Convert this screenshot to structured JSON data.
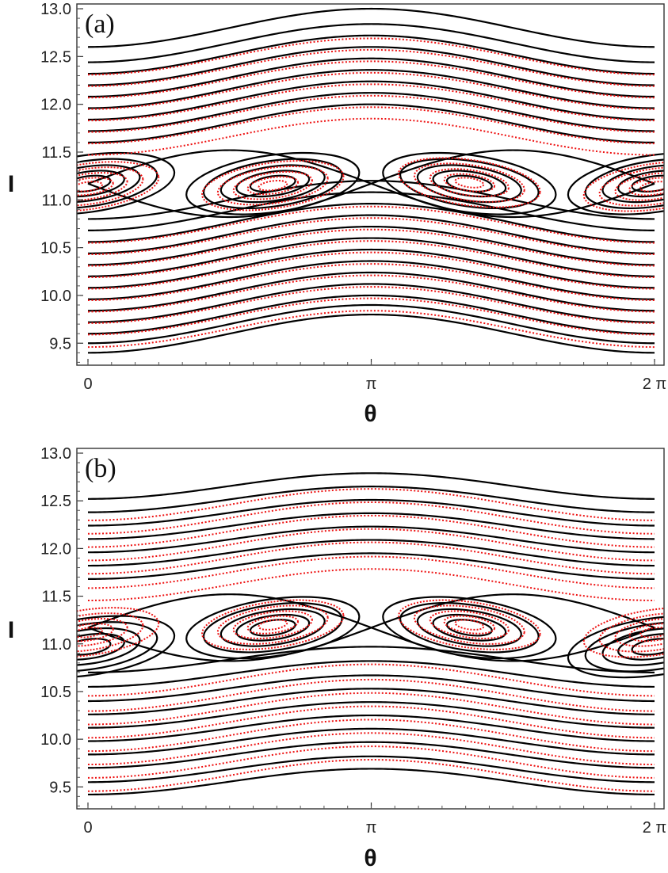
{
  "chart_data": [
    {
      "type": "scatter",
      "panel_label": "(a)",
      "xlabel": "θ",
      "ylabel": "I",
      "xlim": [
        0,
        6.2832
      ],
      "ylim": [
        9.27,
        13.05
      ],
      "x_ticks": [
        {
          "value": 0,
          "label": "0"
        },
        {
          "value": 3.1416,
          "label": "π"
        },
        {
          "value": 6.2832,
          "label": "2 π"
        }
      ],
      "y_ticks": [
        {
          "value": 9.5,
          "label": "9.5"
        },
        {
          "value": 10.0,
          "label": "10.0"
        },
        {
          "value": 10.5,
          "label": "10.5"
        },
        {
          "value": 11.0,
          "label": "11.0"
        },
        {
          "value": 11.5,
          "label": "11.5"
        },
        {
          "value": 12.0,
          "label": "12.0"
        },
        {
          "value": 12.5,
          "label": "12.5"
        },
        {
          "value": 13.0,
          "label": "13.0"
        }
      ],
      "grid": false,
      "series": [
        {
          "kind": "analytic-contours",
          "color": "#000000",
          "outer_curves_at_theta_0": [
            9.4,
            9.5,
            9.6,
            9.72,
            9.84,
            9.96,
            10.08,
            10.2,
            10.32,
            10.44,
            10.56,
            10.68,
            10.8,
            11.6,
            11.72,
            11.84,
            11.96,
            12.08,
            12.2,
            12.32,
            12.44,
            12.6
          ],
          "modulation_amplitude": 0.4,
          "separatrix_centers": [
            1.571,
            4.712
          ],
          "separatrix_level_range": [
            10.82,
            11.52
          ],
          "island_centers": [
            {
              "theta": 0,
              "I": 11.17
            },
            {
              "theta": 2.05,
              "I": 11.17
            },
            {
              "theta": 4.23,
              "I": 11.17
            },
            {
              "theta": 6.2832,
              "I": 11.17
            }
          ]
        },
        {
          "kind": "numerical-orbits",
          "color": "#ee1111",
          "outer_curves_at_theta_0": [
            9.65,
            9.78,
            9.9,
            10.02,
            10.14,
            10.26,
            10.38,
            10.5,
            10.62,
            10.74,
            11.66,
            11.78,
            11.9,
            12.02,
            12.14,
            12.26,
            12.38,
            12.5
          ],
          "modulation_amplitude": 0.38,
          "island_centers": [
            {
              "theta": 0,
              "I": 11.14
            },
            {
              "theta": 2.05,
              "I": 11.15
            },
            {
              "theta": 4.23,
              "I": 11.18
            },
            {
              "theta": 6.2832,
              "I": 11.14
            }
          ]
        }
      ]
    },
    {
      "type": "scatter",
      "panel_label": "(b)",
      "xlabel": "θ",
      "ylabel": "I",
      "xlim": [
        0,
        6.2832
      ],
      "ylim": [
        9.27,
        13.05
      ],
      "x_ticks": [
        {
          "value": 0,
          "label": "0"
        },
        {
          "value": 3.1416,
          "label": "π"
        },
        {
          "value": 6.2832,
          "label": "2 π"
        }
      ],
      "y_ticks": [
        {
          "value": 9.5,
          "label": "9.5"
        },
        {
          "value": 10.0,
          "label": "10.0"
        },
        {
          "value": 10.5,
          "label": "10.5"
        },
        {
          "value": 11.0,
          "label": "11.0"
        },
        {
          "value": 11.5,
          "label": "11.5"
        },
        {
          "value": 12.0,
          "label": "12.0"
        },
        {
          "value": 12.5,
          "label": "12.5"
        },
        {
          "value": 13.0,
          "label": "13.0"
        }
      ],
      "grid": false,
      "series": [
        {
          "kind": "analytic-contours",
          "color": "#000000",
          "outer_curves_at_theta_0": [
            9.42,
            9.55,
            9.7,
            9.84,
            9.98,
            10.12,
            10.26,
            10.4,
            10.55,
            10.7,
            11.68,
            11.82,
            11.96,
            12.1,
            12.24,
            12.38,
            12.52
          ],
          "modulation_amplitude": 0.27,
          "separatrix_centers": [
            1.571,
            4.712
          ],
          "separatrix_level_range": [
            10.82,
            11.52
          ],
          "island_centers": [
            {
              "theta": 0,
              "I": 10.97
            },
            {
              "theta": 2.05,
              "I": 11.17
            },
            {
              "theta": 4.23,
              "I": 11.17
            },
            {
              "theta": 6.2832,
              "I": 10.97
            }
          ]
        },
        {
          "kind": "numerical-orbits",
          "color": "#ee1111",
          "outer_curves_at_theta_0": [
            9.62,
            9.76,
            9.9,
            10.04,
            10.18,
            10.32,
            10.46,
            10.62,
            11.62,
            11.75,
            11.9,
            12.04,
            12.18,
            12.32,
            12.46
          ],
          "modulation_amplitude": 0.33,
          "island_centers": [
            {
              "theta": 0,
              "I": 11.12
            },
            {
              "theta": 2.05,
              "I": 11.2
            },
            {
              "theta": 4.23,
              "I": 11.2
            },
            {
              "theta": 6.2832,
              "I": 11.12
            }
          ]
        }
      ]
    }
  ]
}
